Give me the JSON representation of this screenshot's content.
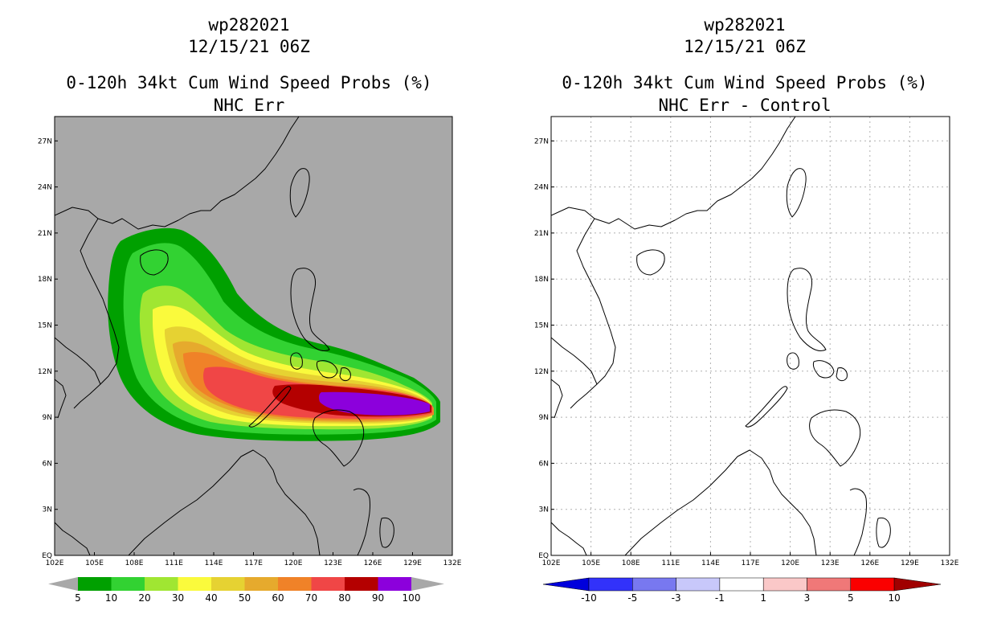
{
  "left_panel": {
    "storm_id": "wp282021",
    "datetime": "12/15/21 06Z",
    "title": "0-120h 34kt Cum Wind Speed Probs (%)",
    "subtitle": "NHC Err",
    "background_color": "#a8a8a8",
    "colorbar": {
      "labels": [
        "5",
        "10",
        "20",
        "30",
        "40",
        "50",
        "60",
        "70",
        "80",
        "90",
        "100"
      ],
      "colors": [
        "#00a000",
        "#32d232",
        "#a0e632",
        "#fafa3c",
        "#e6d232",
        "#e6aa2d",
        "#f08228",
        "#f04646",
        "#b40000",
        "#8c00dc"
      ]
    }
  },
  "right_panel": {
    "storm_id": "wp282021",
    "datetime": "12/15/21 06Z",
    "title": "0-120h 34kt Cum Wind Speed Probs (%)",
    "subtitle": "NHC Err - Control",
    "colorbar": {
      "labels": [
        "-10",
        "-5",
        "-3",
        "-1",
        "1",
        "3",
        "5",
        "10"
      ],
      "colors": [
        "#0000dc",
        "#3232fa",
        "#7878f0",
        "#c8c8fa",
        "#ffffff",
        "#fac8c8",
        "#f07878",
        "#fa0000",
        "#a00000"
      ]
    }
  },
  "axes": {
    "lon_labels": [
      "102E",
      "105E",
      "108E",
      "111E",
      "114E",
      "117E",
      "120E",
      "123E",
      "126E",
      "129E",
      "132E"
    ],
    "lat_labels": [
      "EQ",
      "3N",
      "6N",
      "9N",
      "12N",
      "15N",
      "18N",
      "21N",
      "24N",
      "27N"
    ]
  }
}
